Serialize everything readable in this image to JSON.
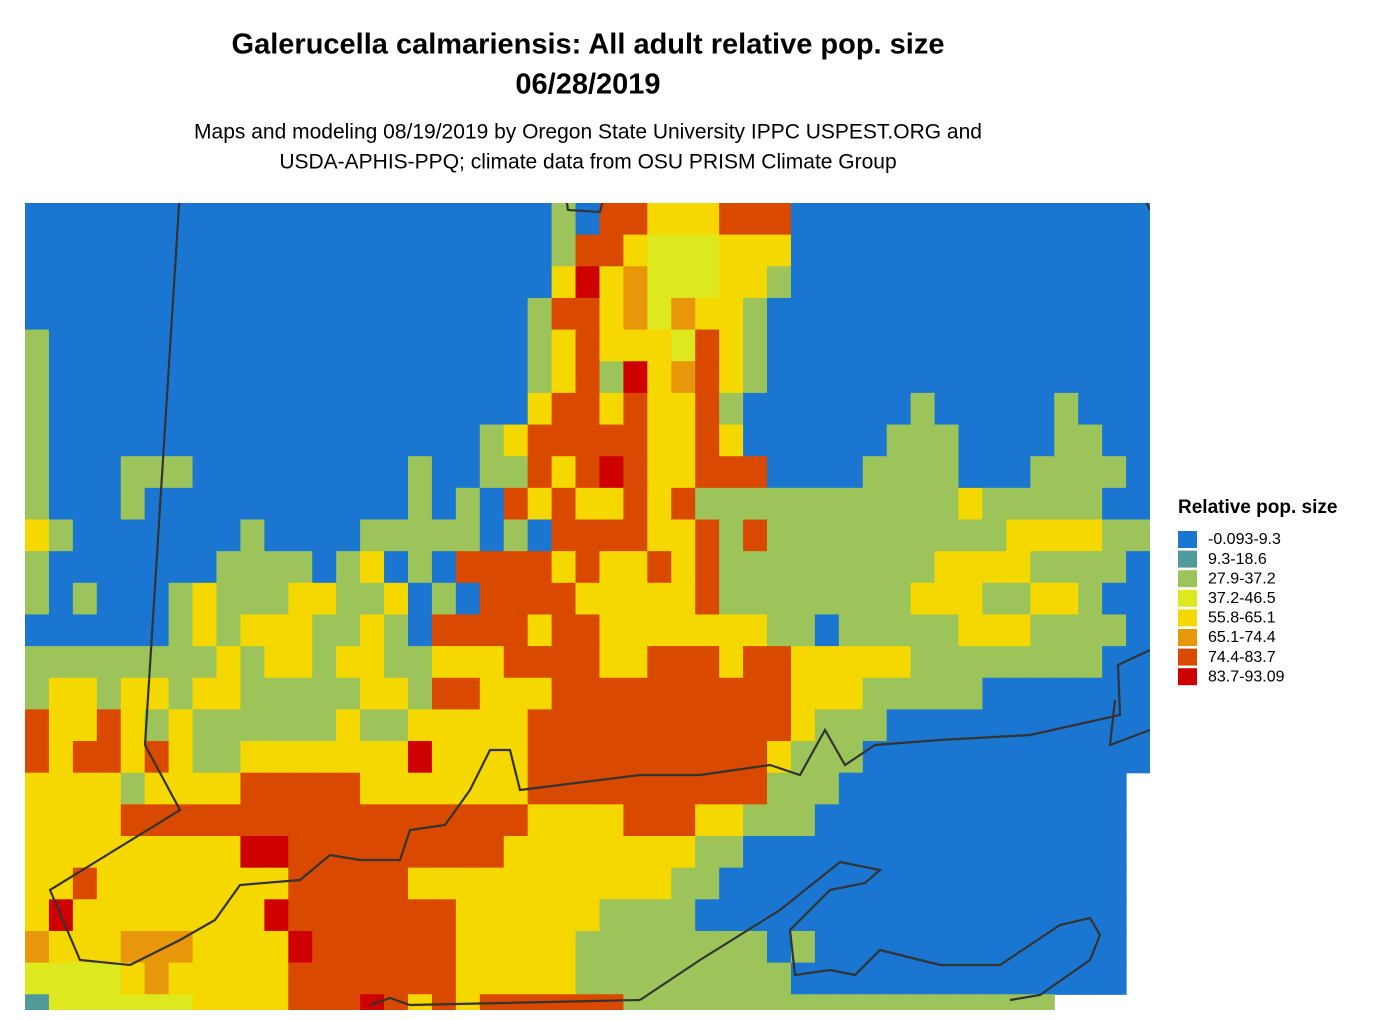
{
  "map": {
    "title": [
      "Galerucella calmariensis: All adult relative pop. size",
      "06/28/2019"
    ],
    "subtitle": [
      "Maps and modeling 08/19/2019 by Oregon State University IPPC USPEST.ORG and",
      "USDA-APHIS-PPQ; climate data from OSU PRISM Climate Group"
    ],
    "legend_title": "Relative pop. size",
    "legend": [
      {
        "label": "-0.093-9.3",
        "color": "#1a76d0"
      },
      {
        "label": "9.3-18.6",
        "color": "#4f9a9a"
      },
      {
        "label": "27.9-37.2",
        "color": "#9dc45a"
      },
      {
        "label": "37.2-46.5",
        "color": "#dde81e"
      },
      {
        "label": "55.8-65.1",
        "color": "#f5d800"
      },
      {
        "label": "65.1-74.4",
        "color": "#e8960a"
      },
      {
        "label": "74.4-83.7",
        "color": "#d94a00"
      },
      {
        "label": "83.7-93.09",
        "color": "#cf0000"
      }
    ],
    "grid": [
      "00000000000000000000002066444666000000000000000",
      "00000000000000000000002664333444000000000000000",
      "00000000000000000000004745333442000000000000000",
      "00000000000000000000026645354420000000000000000",
      "20000000000000000000024644436420000000000000000",
      "20000000000000000000024627456420000000000000000",
      "20000000000000000000046646446200000002000002000",
      "20000000000000000002466666446400000022200002200",
      "20002220000000002002264676446660000222200022220",
      "20002000000000002020646446462222222222242222200",
      "42000000020000222220206666446262222222222444422",
      "20000000222202402066664644646222222222444422220",
      "20200024222442240206666444446222222224442244200",
      "00000024244422420666646644444442202222244422220",
      "22222222424424422444666644666466444442222222200",
      "24424424422222442664446666666666444222220000000",
      "64464242222224224444466666666666422200000000000",
      "64664642244444447444466666666664222000000000000",
      "4444244446666644444446666666666222000000000000.",
      "4444666666666666666664444666442220000000000000.",
      "4444444447766666666644444444220000000000000000.",
      "4464444444466666444444444442200000000000000000.",
      "4744444444766666664444442222000000000000000000.",
      "5444555444476666664444422222222020000000000000.",
      "3333454444466666664444422222222200000000000000.",
      "1333333444466676464666666222222222222222222....."
    ]
  }
}
